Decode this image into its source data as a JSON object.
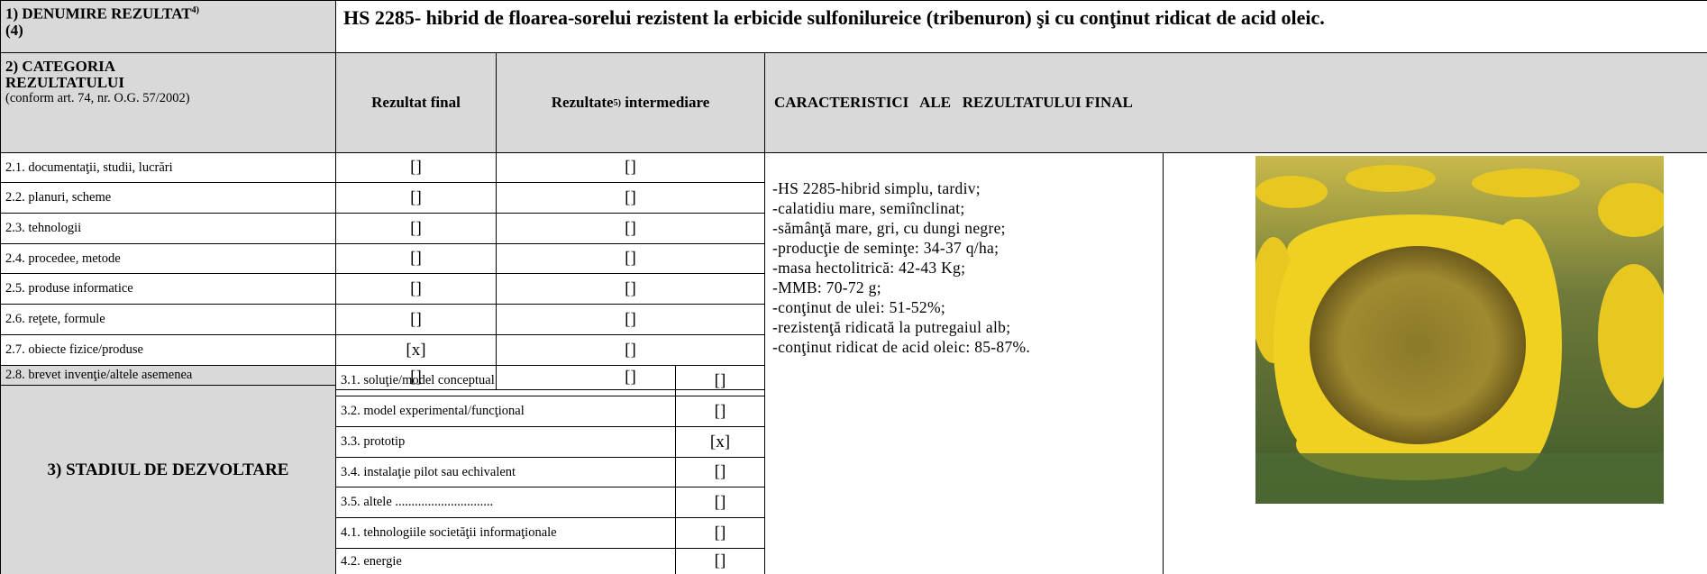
{
  "header": {
    "label": "1) DENUMIRE REZULTAT",
    "label_sup": "4)",
    "label_note": "(4)",
    "title": "HS 2285- hibrid de floarea-sorelui  rezistent la erbicide sulfonilureice (tribenuron) şi cu conţinut ridicat de acid oleic."
  },
  "category": {
    "label": "2) CATEGORIA REZULTATULUI",
    "note": "(conform art. 74, nr. O.G. 57/2002)",
    "col_final": "Rezultat final",
    "col_intermediate": "Rezultate",
    "col_intermediate_sup": "5)",
    "col_intermediate_rest": " intermediare",
    "characteristics_title": "CARACTERISTICI   ALE   REZULTATULUI FINAL"
  },
  "categories": [
    {
      "label": "2.1. documentaţii, studii, lucrări",
      "final": "[]",
      "intermediate": "[]"
    },
    {
      "label": "2.2. planuri, scheme",
      "final": "[]",
      "intermediate": "[]"
    },
    {
      "label": "2.3. tehnologii",
      "final": "[]",
      "intermediate": "[]"
    },
    {
      "label": "2.4. procedee, metode",
      "final": "[]",
      "intermediate": "[]"
    },
    {
      "label": "2.5. produse informatice",
      "final": "[]",
      "intermediate": "[]"
    },
    {
      "label": "2.6. reţete, formule",
      "final": "[]",
      "intermediate": "[]"
    },
    {
      "label": "2.7. obiecte fizice/produse",
      "final": "[x]",
      "intermediate": "[]"
    },
    {
      "label": "2.8. brevet invenţie/altele asemenea",
      "final": "[]",
      "intermediate": "[]"
    }
  ],
  "characteristics": [
    "-HS 2285-hibrid simplu, tardiv;",
    "-calatidiu mare, semiînclinat;",
    "-sămânţă mare, gri, cu dungi negre;",
    "-producţie de seminţe: 34-37 q/ha;",
    "-masa hectolitrică: 42-43 Kg;",
    "-MMB: 70-72 g;",
    "-conţinut de ulei: 51-52%;",
    "-rezistenţă ridicată la putregaiul alb;",
    "-conţinut ridicat de acid oleic: 85-87%."
  ],
  "stage": {
    "label": "3) STADIUL DE DEZVOLTARE",
    "items": [
      {
        "label": "3.1. soluţie/model conceptual",
        "mark": "[]"
      },
      {
        "label": "3.2. model experimental/funcţional",
        "mark": "[]"
      },
      {
        "label": "3.3. prototip",
        "mark": "[x]"
      },
      {
        "label": "3.4. instalaţie pilot sau echivalent",
        "mark": "[]"
      },
      {
        "label": "3.5. altele ..............................",
        "mark": "[]"
      },
      {
        "label": "4.1. tehnologiile societăţii informaţionale",
        "mark": "[]"
      },
      {
        "label": "4.2. energie",
        "mark": "[]"
      }
    ]
  }
}
